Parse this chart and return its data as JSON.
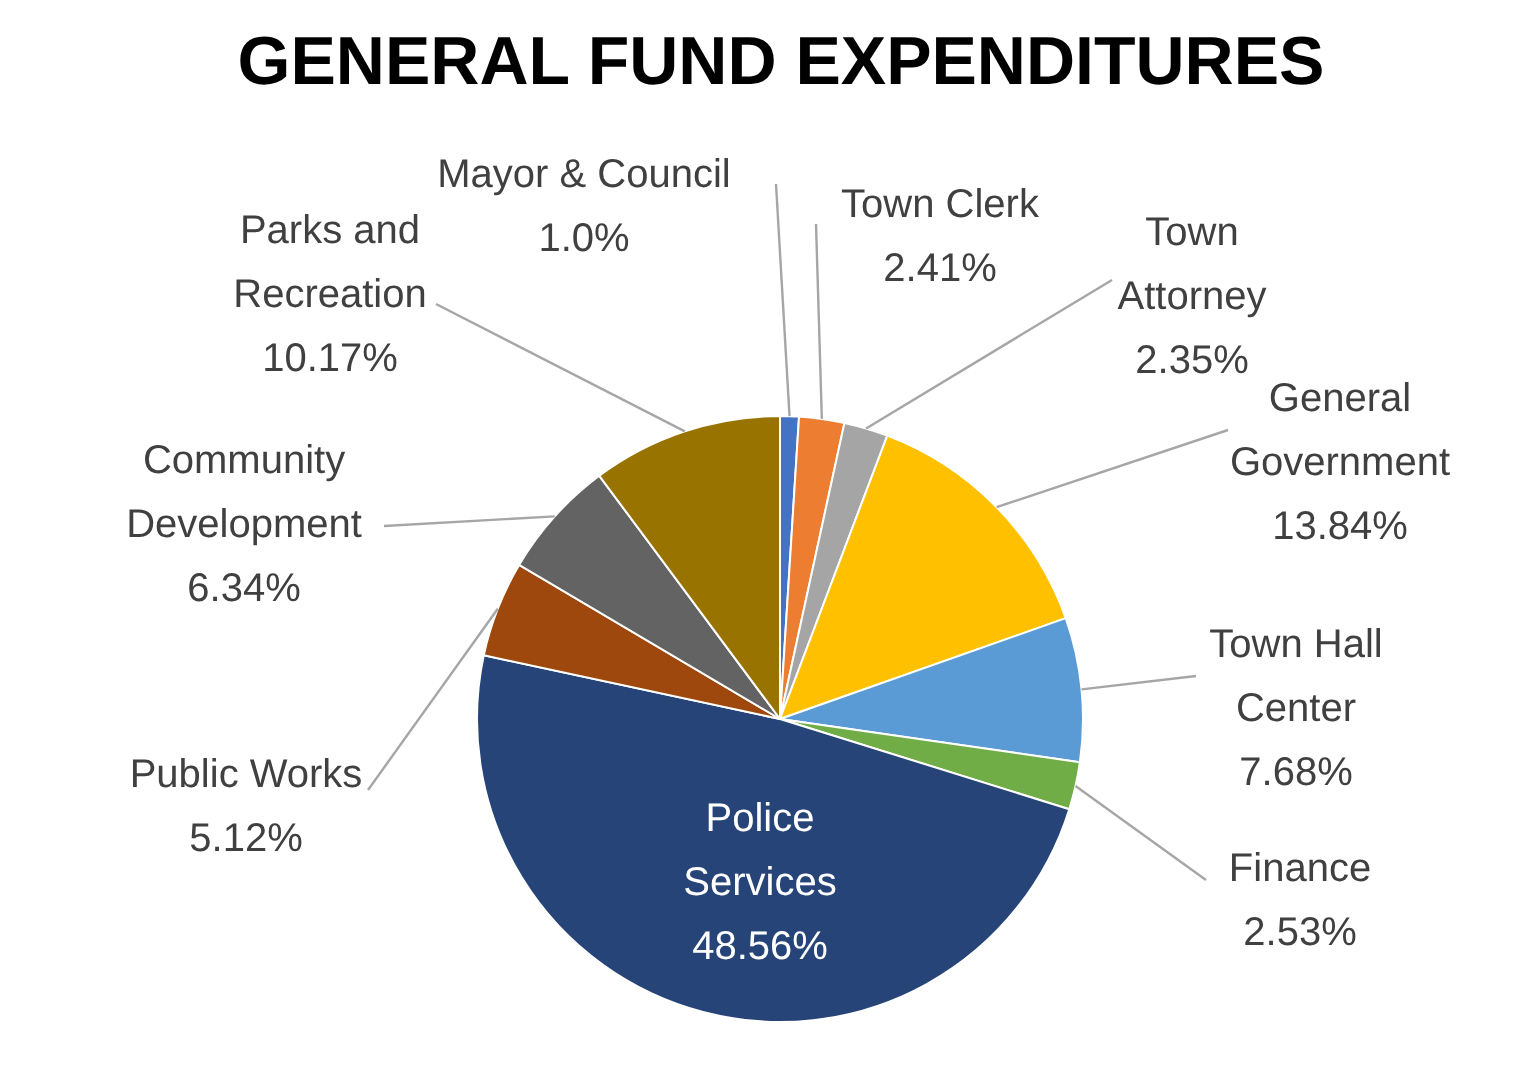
{
  "chart_data": {
    "type": "pie",
    "title": "GENERAL FUND EXPENDITURES",
    "categories": [
      "Mayor & Council",
      "Town Clerk",
      "Town Attorney",
      "General Government",
      "Town Hall Center",
      "Finance",
      "Police Services",
      "Public Works",
      "Community Development",
      "Parks and Recreation"
    ],
    "values": [
      1.0,
      2.41,
      2.35,
      13.84,
      7.68,
      2.53,
      48.56,
      5.12,
      6.34,
      10.17
    ],
    "value_labels": [
      "1.0%",
      "2.41%",
      "2.35%",
      "13.84%",
      "7.68%",
      "2.53%",
      "48.56%",
      "5.12%",
      "6.34%",
      "10.17%"
    ],
    "colors": [
      "#4472c4",
      "#ed7d31",
      "#a5a5a5",
      "#ffc000",
      "#5b9bd5",
      "#70ad47",
      "#264478",
      "#9e480e",
      "#636363",
      "#997300"
    ],
    "legend": false
  }
}
